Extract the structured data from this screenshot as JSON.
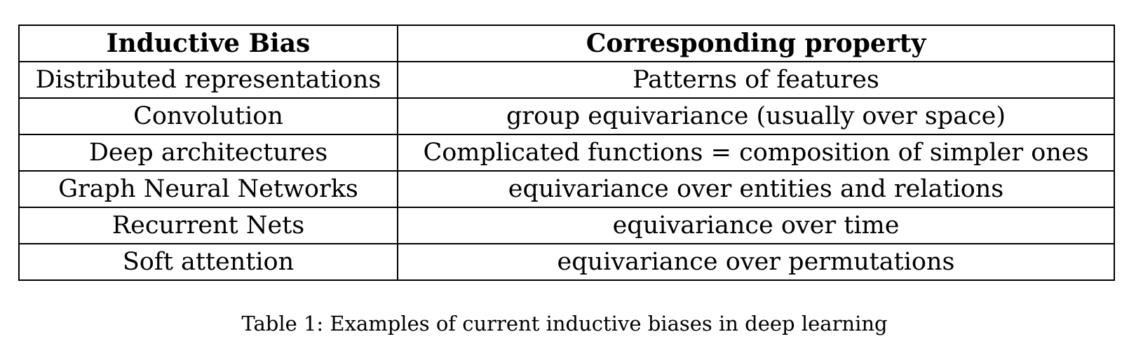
{
  "table": {
    "headers": [
      "Inductive Bias",
      "Corresponding property"
    ],
    "rows": [
      [
        "Distributed representations",
        "Patterns of features"
      ],
      [
        "Convolution",
        "group equivariance (usually over space)"
      ],
      [
        "Deep architectures",
        "Complicated functions = composition of simpler ones"
      ],
      [
        "Graph Neural Networks",
        "equivariance over entities and relations"
      ],
      [
        "Recurrent Nets",
        "equivariance over time"
      ],
      [
        "Soft attention",
        "equivariance over permutations"
      ]
    ]
  },
  "caption": "Table 1: Examples of current inductive biases in deep learning"
}
